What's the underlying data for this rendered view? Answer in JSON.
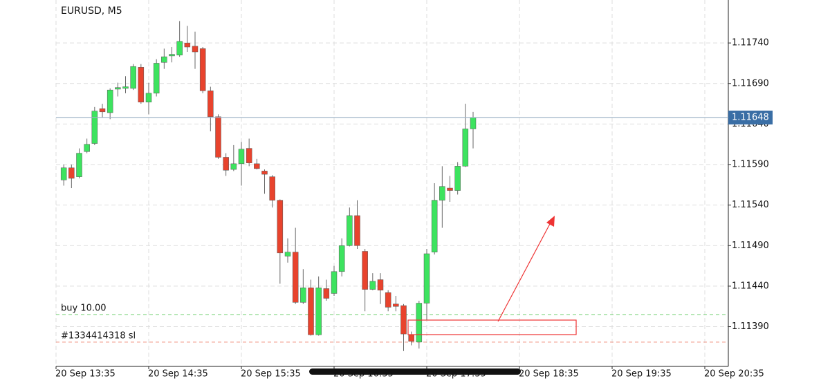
{
  "chart_data": {
    "type": "candlestick",
    "title": "EURUSD, M5",
    "x": [
      "20 Sep 13:40",
      "20 Sep 13:45",
      "20 Sep 13:50",
      "20 Sep 13:55",
      "20 Sep 14:00",
      "20 Sep 14:05",
      "20 Sep 14:10",
      "20 Sep 14:15",
      "20 Sep 14:20",
      "20 Sep 14:25",
      "20 Sep 14:30",
      "20 Sep 14:35",
      "20 Sep 14:40",
      "20 Sep 14:45",
      "20 Sep 14:50",
      "20 Sep 14:55",
      "20 Sep 15:00",
      "20 Sep 15:05",
      "20 Sep 15:10",
      "20 Sep 15:15",
      "20 Sep 15:20",
      "20 Sep 15:25",
      "20 Sep 15:30",
      "20 Sep 15:35",
      "20 Sep 15:40",
      "20 Sep 15:45",
      "20 Sep 15:50",
      "20 Sep 15:55",
      "20 Sep 16:00",
      "20 Sep 16:05",
      "20 Sep 16:10",
      "20 Sep 16:15",
      "20 Sep 16:20",
      "20 Sep 16:25",
      "20 Sep 16:30",
      "20 Sep 16:35",
      "20 Sep 16:40",
      "20 Sep 16:45",
      "20 Sep 16:50",
      "20 Sep 16:55",
      "20 Sep 17:00",
      "20 Sep 17:05",
      "20 Sep 17:10",
      "20 Sep 17:15",
      "20 Sep 17:20",
      "20 Sep 17:25",
      "20 Sep 17:30",
      "20 Sep 17:35",
      "20 Sep 17:40",
      "20 Sep 17:45",
      "20 Sep 17:50",
      "20 Sep 17:55",
      "20 Sep 18:00",
      "20 Sep 18:05"
    ],
    "open": [
      1.11571,
      1.11586,
      1.11575,
      1.11606,
      1.11616,
      1.11659,
      1.11654,
      1.11683,
      1.11684,
      1.11684,
      1.1171,
      1.11667,
      1.11678,
      1.11716,
      1.11724,
      1.11725,
      1.1174,
      1.11736,
      1.11733,
      1.11681,
      1.11649,
      1.11599,
      1.11584,
      1.11591,
      1.1161,
      1.11591,
      1.11582,
      1.11575,
      1.11546,
      1.11477,
      1.11482,
      1.1142,
      1.11438,
      1.1138,
      1.11437,
      1.11431,
      1.11458,
      1.1149,
      1.11527,
      1.11483,
      1.11436,
      1.11448,
      1.11432,
      1.11418,
      1.11416,
      1.1138,
      1.11371,
      1.11419,
      1.11482,
      1.11546,
      1.11561,
      1.11558,
      1.11588,
      1.11634
    ],
    "high": [
      1.1159,
      1.1159,
      1.1161,
      1.11622,
      1.11661,
      1.11665,
      1.11684,
      1.11691,
      1.11699,
      1.11714,
      1.11714,
      1.11691,
      1.1172,
      1.11733,
      1.11735,
      1.11767,
      1.11761,
      1.11754,
      1.11735,
      1.11686,
      1.11652,
      1.11604,
      1.11614,
      1.11618,
      1.11622,
      1.11597,
      1.11584,
      1.11577,
      1.11547,
      1.11499,
      1.11512,
      1.11461,
      1.11448,
      1.11452,
      1.11448,
      1.11465,
      1.11499,
      1.11537,
      1.11546,
      1.11486,
      1.11456,
      1.11456,
      1.11435,
      1.11428,
      1.11418,
      1.11384,
      1.11422,
      1.11486,
      1.11567,
      1.11588,
      1.11576,
      1.11593,
      1.11665,
      1.11655
    ],
    "low": [
      1.11564,
      1.11561,
      1.11573,
      1.11604,
      1.11614,
      1.11648,
      1.11646,
      1.11674,
      1.11678,
      1.11682,
      1.11665,
      1.11652,
      1.11674,
      1.11708,
      1.11716,
      1.11723,
      1.11729,
      1.11708,
      1.11678,
      1.11631,
      1.11597,
      1.11576,
      1.11582,
      1.11564,
      1.11588,
      1.11584,
      1.11554,
      1.11537,
      1.11443,
      1.11469,
      1.11418,
      1.11418,
      1.11379,
      1.11379,
      1.11422,
      1.11428,
      1.11452,
      1.11489,
      1.11486,
      1.11409,
      1.11435,
      1.11418,
      1.11409,
      1.11409,
      1.1136,
      1.11367,
      1.11363,
      1.11398,
      1.11479,
      1.11512,
      1.11544,
      1.11553,
      1.11587,
      1.1161
    ],
    "close": [
      1.11586,
      1.11573,
      1.11604,
      1.11615,
      1.11656,
      1.11655,
      1.11682,
      1.11685,
      1.11686,
      1.11711,
      1.11667,
      1.11678,
      1.11715,
      1.11723,
      1.11726,
      1.11742,
      1.11735,
      1.11729,
      1.11681,
      1.11649,
      1.11599,
      1.11583,
      1.11591,
      1.11609,
      1.11592,
      1.11585,
      1.11578,
      1.11546,
      1.11481,
      1.11482,
      1.1142,
      1.11438,
      1.1138,
      1.11438,
      1.11425,
      1.11458,
      1.1149,
      1.11527,
      1.1149,
      1.11436,
      1.11446,
      1.11435,
      1.11414,
      1.11415,
      1.11381,
      1.11372,
      1.11419,
      1.1148,
      1.11546,
      1.11563,
      1.11558,
      1.11588,
      1.11634,
      1.11648
    ],
    "up_color": "#3de35f",
    "down_color": "#e8432d",
    "ylim": [
      1.11341,
      1.11793
    ],
    "yticks": [
      {
        "value": 1.1139,
        "label": "1.11390"
      },
      {
        "value": 1.1144,
        "label": "1.11440"
      },
      {
        "value": 1.1149,
        "label": "1.11490"
      },
      {
        "value": 1.1154,
        "label": "1.11540"
      },
      {
        "value": 1.1159,
        "label": "1.11590"
      },
      {
        "value": 1.1164,
        "label": "1.11640"
      },
      {
        "value": 1.1169,
        "label": "1.11690"
      },
      {
        "value": 1.1174,
        "label": "1.11740"
      }
    ],
    "xticks": [
      "20 Sep 13:35",
      "20 Sep 14:35",
      "20 Sep 15:35",
      "20 Sep 16:35",
      "20 Sep 17:35",
      "20 Sep 18:35",
      "20 Sep 19:35",
      "20 Sep 20:35"
    ],
    "grid": true,
    "current_price": {
      "value": 1.11648,
      "label": "1.11648"
    },
    "levels": [
      {
        "name": "buy 10.00",
        "value": 1.11405,
        "color": "#6fcf6f"
      },
      {
        "name": "#1334414318 sl",
        "value": 1.11371,
        "color": "#f08a7a"
      }
    ]
  }
}
